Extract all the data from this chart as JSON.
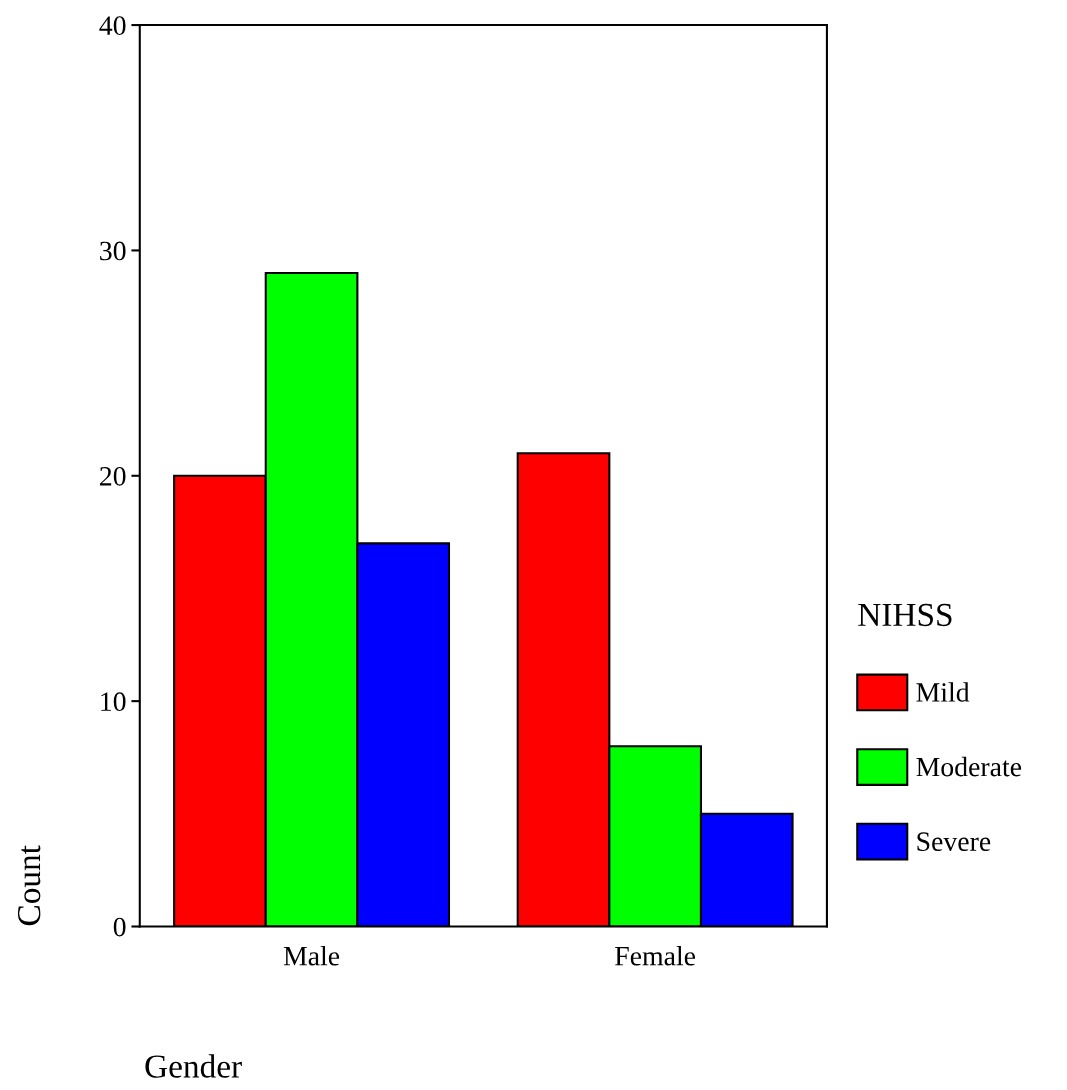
{
  "chart_data": {
    "type": "bar",
    "categories": [
      "Male",
      "Female"
    ],
    "series": [
      {
        "name": "Mild",
        "color": "#ff0000",
        "values": [
          20,
          21
        ]
      },
      {
        "name": "Moderate",
        "color": "#00ff00",
        "values": [
          29,
          8
        ]
      },
      {
        "name": "Severe",
        "color": "#0000ff",
        "values": [
          17,
          5
        ]
      }
    ],
    "xlabel": "Gender",
    "ylabel": "Count",
    "legend_title": "NIHSS",
    "legend": "right",
    "ylim": [
      0,
      40
    ],
    "yticks": [
      0,
      10,
      20,
      30,
      40
    ],
    "grid": false
  }
}
